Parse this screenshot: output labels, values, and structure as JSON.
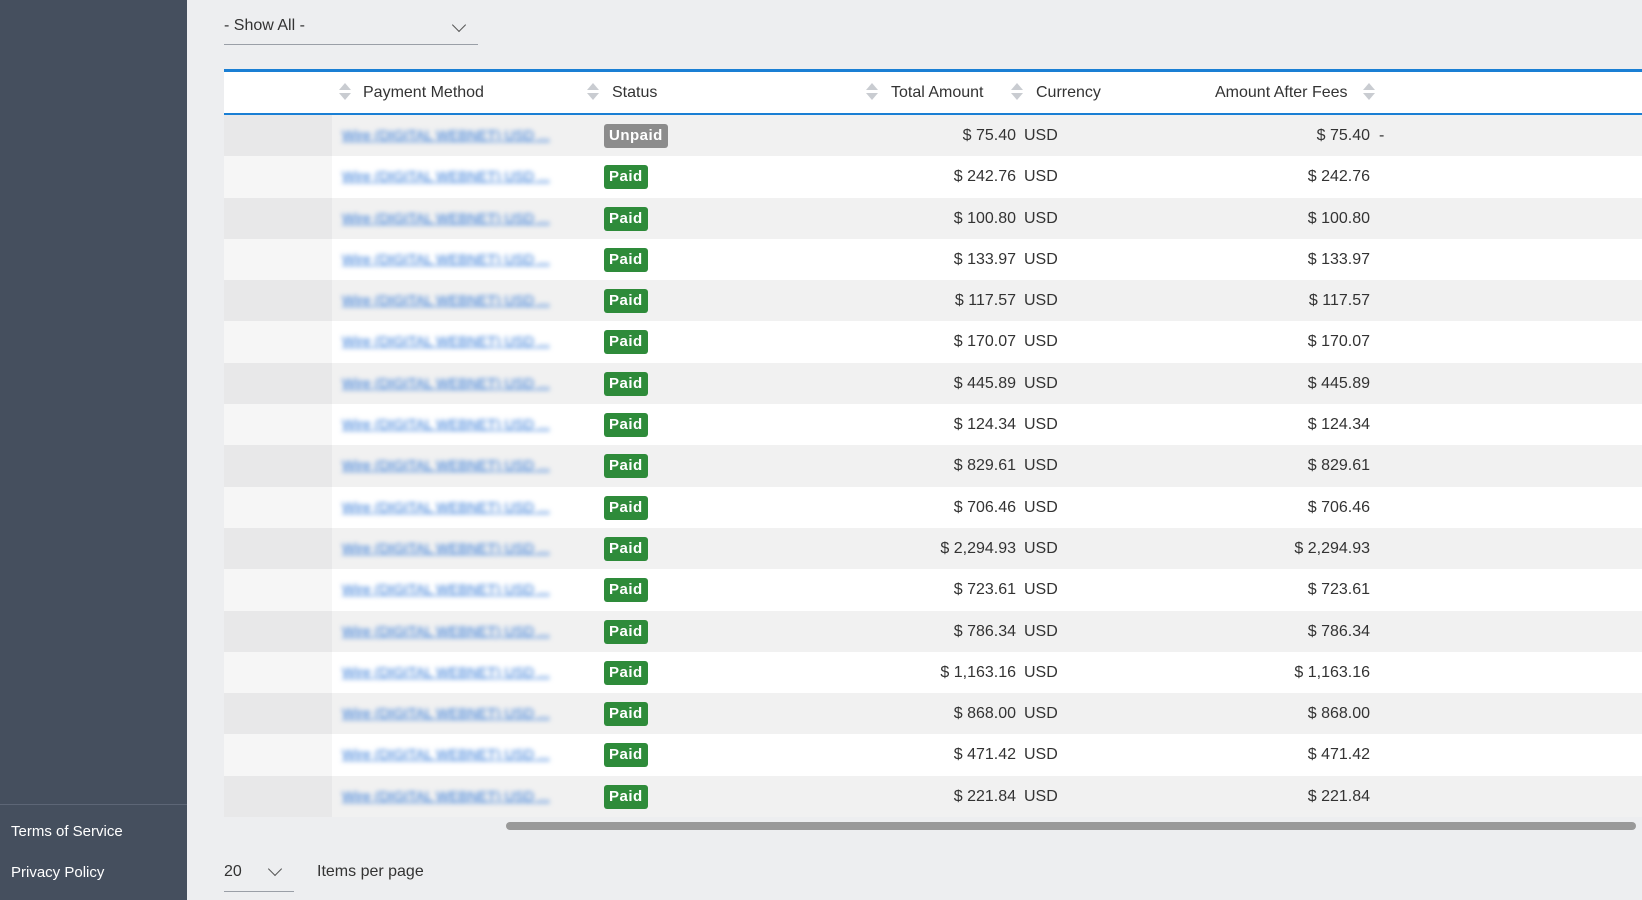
{
  "sidebar": {
    "links": [
      "Terms of Service",
      "Privacy Policy"
    ]
  },
  "filter": {
    "value": "- Show All -"
  },
  "table": {
    "columns": [
      "Payment Method",
      "Status",
      "Total Amount",
      "Currency",
      "Amount After Fees"
    ],
    "rows": [
      {
        "payment_method": "Wire (DIGITAL WEBNET) USD ...",
        "status": "Unpaid",
        "total": "$ 75.40",
        "currency": "USD",
        "after_fees": "$ 75.40",
        "extra": "-"
      },
      {
        "payment_method": "Wire (DIGITAL WEBNET) USD ...",
        "status": "Paid",
        "total": "$ 242.76",
        "currency": "USD",
        "after_fees": "$ 242.76",
        "extra": ""
      },
      {
        "payment_method": "Wire (DIGITAL WEBNET) USD ...",
        "status": "Paid",
        "total": "$ 100.80",
        "currency": "USD",
        "after_fees": "$ 100.80",
        "extra": ""
      },
      {
        "payment_method": "Wire (DIGITAL WEBNET) USD ...",
        "status": "Paid",
        "total": "$ 133.97",
        "currency": "USD",
        "after_fees": "$ 133.97",
        "extra": ""
      },
      {
        "payment_method": "Wire (DIGITAL WEBNET) USD ...",
        "status": "Paid",
        "total": "$ 117.57",
        "currency": "USD",
        "after_fees": "$ 117.57",
        "extra": ""
      },
      {
        "payment_method": "Wire (DIGITAL WEBNET) USD ...",
        "status": "Paid",
        "total": "$ 170.07",
        "currency": "USD",
        "after_fees": "$ 170.07",
        "extra": ""
      },
      {
        "payment_method": "Wire (DIGITAL WEBNET) USD ...",
        "status": "Paid",
        "total": "$ 445.89",
        "currency": "USD",
        "after_fees": "$ 445.89",
        "extra": ""
      },
      {
        "payment_method": "Wire (DIGITAL WEBNET) USD ...",
        "status": "Paid",
        "total": "$ 124.34",
        "currency": "USD",
        "after_fees": "$ 124.34",
        "extra": ""
      },
      {
        "payment_method": "Wire (DIGITAL WEBNET) USD ...",
        "status": "Paid",
        "total": "$ 829.61",
        "currency": "USD",
        "after_fees": "$ 829.61",
        "extra": ""
      },
      {
        "payment_method": "Wire (DIGITAL WEBNET) USD ...",
        "status": "Paid",
        "total": "$ 706.46",
        "currency": "USD",
        "after_fees": "$ 706.46",
        "extra": ""
      },
      {
        "payment_method": "Wire (DIGITAL WEBNET) USD ...",
        "status": "Paid",
        "total": "$ 2,294.93",
        "currency": "USD",
        "after_fees": "$ 2,294.93",
        "extra": ""
      },
      {
        "payment_method": "Wire (DIGITAL WEBNET) USD ...",
        "status": "Paid",
        "total": "$ 723.61",
        "currency": "USD",
        "after_fees": "$ 723.61",
        "extra": ""
      },
      {
        "payment_method": "Wire (DIGITAL WEBNET) USD ...",
        "status": "Paid",
        "total": "$ 786.34",
        "currency": "USD",
        "after_fees": "$ 786.34",
        "extra": ""
      },
      {
        "payment_method": "Wire (DIGITAL WEBNET) USD ...",
        "status": "Paid",
        "total": "$ 1,163.16",
        "currency": "USD",
        "after_fees": "$ 1,163.16",
        "extra": ""
      },
      {
        "payment_method": "Wire (DIGITAL WEBNET) USD ...",
        "status": "Paid",
        "total": "$ 868.00",
        "currency": "USD",
        "after_fees": "$ 868.00",
        "extra": ""
      },
      {
        "payment_method": "Wire (DIGITAL WEBNET) USD ...",
        "status": "Paid",
        "total": "$ 471.42",
        "currency": "USD",
        "after_fees": "$ 471.42",
        "extra": ""
      },
      {
        "payment_method": "Wire (DIGITAL WEBNET) USD ...",
        "status": "Paid",
        "total": "$ 221.84",
        "currency": "USD",
        "after_fees": "$ 221.84",
        "extra": ""
      }
    ]
  },
  "pager": {
    "per_page_value": "20",
    "label": "Items per page"
  },
  "colors": {
    "sidebar_bg": "#454f5e",
    "accent": "#1a7fd4",
    "paid": "#2e8b3a",
    "unpaid": "#8c8c8c",
    "link": "#2a74d6"
  },
  "icons": {
    "sort": "sort-icon",
    "dropdown": "chevron-down-icon"
  }
}
